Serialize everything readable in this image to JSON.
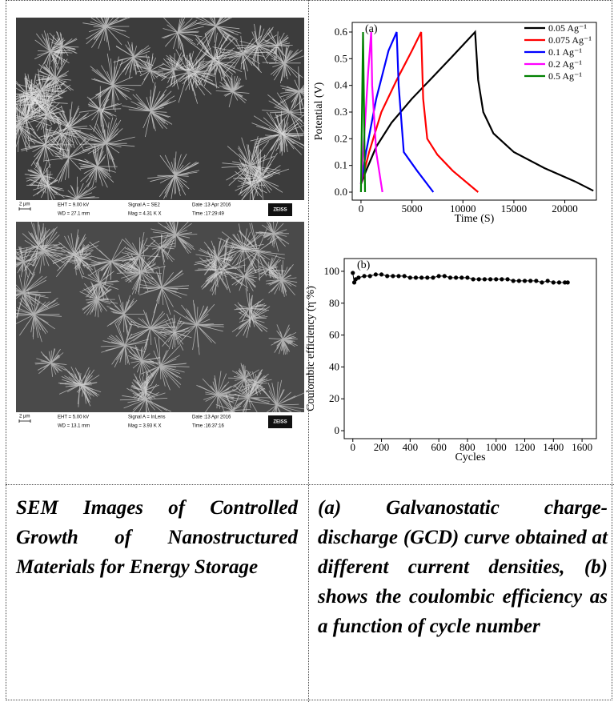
{
  "sem_images": [
    {
      "scale_bar": "2 µm",
      "eht": "EHT =  9.00 kV",
      "signal": "Signal A = SE2",
      "date": "Date :13 Apr 2016",
      "wd": "WD = 27.1 mm",
      "mag": "Mag =    4.31 K X",
      "time": "Time :17:29:49",
      "logo": "ZEISS"
    },
    {
      "scale_bar": "2 µm",
      "eht": "EHT =  5.00 kV",
      "signal": "Signal A = InLens",
      "date": "Date :13 Apr 2016",
      "wd": "WD = 13.1 mm",
      "mag": "Mag =    3.93 K X",
      "time": "Time :16:37:16",
      "logo": "ZEISS"
    }
  ],
  "chart_data": [
    {
      "type": "line",
      "annotation": "(a)",
      "x_label": "Time (S)",
      "y_label": "Potential (V)",
      "xlim": [
        -860,
        23100
      ],
      "ylim": [
        -0.03,
        0.636
      ],
      "xticks": [
        0,
        5000,
        10000,
        15000,
        20000
      ],
      "yticks": [
        {
          "value": 0,
          "label": "0.0"
        },
        0.1,
        0.2,
        0.3,
        0.4,
        0.5,
        0.6
      ],
      "legend": "upper right",
      "series": [
        {
          "name": "0.05 Ag⁻¹",
          "color": "#000000",
          "x": [
            0,
            500,
            1500,
            3000,
            5000,
            7000,
            9000,
            11200,
            11500,
            12000,
            13000,
            15000,
            18000,
            21000,
            22800
          ],
          "values": [
            0.03,
            0.08,
            0.17,
            0.26,
            0.35,
            0.43,
            0.51,
            0.6,
            0.42,
            0.3,
            0.22,
            0.15,
            0.09,
            0.04,
            0.005
          ]
        },
        {
          "name": "0.075 Ag⁻¹",
          "color": "#ff0000",
          "x": [
            0,
            800,
            2000,
            3500,
            5000,
            5900,
            6100,
            6500,
            7500,
            9000,
            11500
          ],
          "values": [
            0.03,
            0.15,
            0.3,
            0.42,
            0.53,
            0.6,
            0.35,
            0.2,
            0.14,
            0.08,
            0.0
          ]
        },
        {
          "name": "0.1 Ag⁻¹",
          "color": "#0000ff",
          "x": [
            0,
            500,
            1500,
            2700,
            3500,
            3700,
            4200,
            5500,
            7100
          ],
          "values": [
            0.03,
            0.15,
            0.35,
            0.53,
            0.6,
            0.4,
            0.15,
            0.08,
            0.0
          ]
        },
        {
          "name": "0.2 Ag⁻¹",
          "color": "#ff00ff",
          "x": [
            0,
            300,
            700,
            1000,
            1100,
            1500,
            2100
          ],
          "values": [
            0.03,
            0.2,
            0.45,
            0.6,
            0.4,
            0.15,
            0.0
          ]
        },
        {
          "name": "0.5 Ag⁻¹",
          "color": "#008000",
          "x": [
            0,
            100,
            200,
            300,
            400
          ],
          "values": [
            0.0,
            0.3,
            0.6,
            0.3,
            0.0
          ]
        }
      ]
    },
    {
      "type": "scatter",
      "annotation": "(b)",
      "x_label": "Cycles",
      "y_label": "Coulombic efficiency (η %)",
      "xlim": [
        -60,
        1700
      ],
      "ylim": [
        -5,
        108
      ],
      "xticks": [
        0,
        200,
        400,
        600,
        800,
        1000,
        1200,
        1400,
        1600
      ],
      "yticks": [
        0,
        20,
        40,
        60,
        80,
        100
      ],
      "series": [
        {
          "color": "#000000",
          "x": [
            0,
            10,
            20,
            40,
            80,
            120,
            160,
            200,
            240,
            280,
            320,
            360,
            400,
            440,
            480,
            520,
            560,
            600,
            640,
            680,
            720,
            760,
            800,
            840,
            880,
            920,
            960,
            1000,
            1040,
            1080,
            1120,
            1160,
            1200,
            1240,
            1280,
            1320,
            1360,
            1400,
            1440,
            1480,
            1500
          ],
          "values": [
            99,
            93,
            95,
            96,
            97,
            97,
            98,
            98,
            97,
            97,
            97,
            97,
            96,
            96,
            96,
            96,
            96,
            97,
            97,
            96,
            96,
            96,
            96,
            95,
            95,
            95,
            95,
            95,
            95,
            95,
            94,
            94,
            94,
            94,
            94,
            93,
            94,
            93,
            93,
            93,
            93
          ]
        }
      ]
    }
  ],
  "captions": {
    "left": "SEM Images of Controlled Growth of Nanostructured Materials for Energy Storage",
    "right": "(a) Galvanostatic charge-discharge (GCD) curve obtained at different current densities, (b) shows the coulombic efficiency as a function of cycle number"
  }
}
